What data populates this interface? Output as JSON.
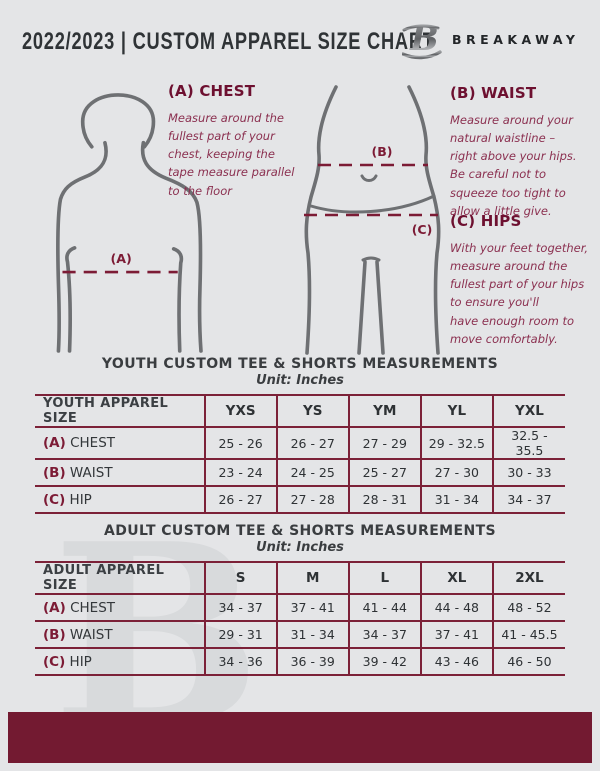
{
  "header": {
    "title": "2022/2023  |  CUSTOM APPAREL SIZE CHART",
    "brand": "BREAKAWAY",
    "logo_letter": "B"
  },
  "colors": {
    "accent_maroon": "#731a31",
    "border_maroon": "#7c2138",
    "heading_maroon": "#6d1030",
    "description_plum": "#8b3050",
    "silhouette_gray": "#6e7073",
    "background": "#e4e5e7"
  },
  "guide": {
    "chest": {
      "tag": "(A)",
      "title": "(A) CHEST",
      "description": "Measure around the fullest part of your chest, keeping the tape measure parallel to the floor"
    },
    "waist": {
      "tag": "(B)",
      "title": "(B) WAIST",
      "description": "Measure around your natural waistline – right above your hips. Be careful not to squeeze too tight to allow a little give."
    },
    "hips": {
      "tag": "(C)",
      "title": "(C) HIPS",
      "description": "With your feet together, measure around the fullest part of your hips to ensure you'll\nhave enough room to move comfortably."
    }
  },
  "youth_table": {
    "title": "YOUTH CUSTOM TEE & SHORTS MEASUREMENTS",
    "unit": "Unit: Inches",
    "columns": [
      "YOUTH APPAREL SIZE",
      "YXS",
      "YS",
      "YM",
      "YL",
      "YXL"
    ],
    "rows": [
      {
        "prefix": "(A)",
        "label": "CHEST",
        "values": [
          "25 - 26",
          "26 - 27",
          "27 - 29",
          "29 - 32.5",
          "32.5 - 35.5"
        ]
      },
      {
        "prefix": "(B)",
        "label": "WAIST",
        "values": [
          "23 - 24",
          "24 - 25",
          "25 - 27",
          "27 - 30",
          "30 - 33"
        ]
      },
      {
        "prefix": "(C)",
        "label": "HIP",
        "values": [
          "26 - 27",
          "27 - 28",
          "28 - 31",
          "31 - 34",
          "34 - 37"
        ]
      }
    ]
  },
  "adult_table": {
    "title": "ADULT CUSTOM TEE & SHORTS MEASUREMENTS",
    "unit": "Unit: Inches",
    "columns": [
      "ADULT APPAREL SIZE",
      "S",
      "M",
      "L",
      "XL",
      "2XL"
    ],
    "rows": [
      {
        "prefix": "(A)",
        "label": "CHEST",
        "values": [
          "34 - 37",
          "37 - 41",
          "41 - 44",
          "44 - 48",
          "48 - 52"
        ]
      },
      {
        "prefix": "(B)",
        "label": "WAIST",
        "values": [
          "29 - 31",
          "31 - 34",
          "34 - 37",
          "37 - 41",
          "41 - 45.5"
        ]
      },
      {
        "prefix": "(C)",
        "label": "HIP",
        "values": [
          "34 - 36",
          "36 - 39",
          "39 - 42",
          "43 - 46",
          "46 - 50"
        ]
      }
    ]
  },
  "watermark": {
    "letter": "B"
  }
}
